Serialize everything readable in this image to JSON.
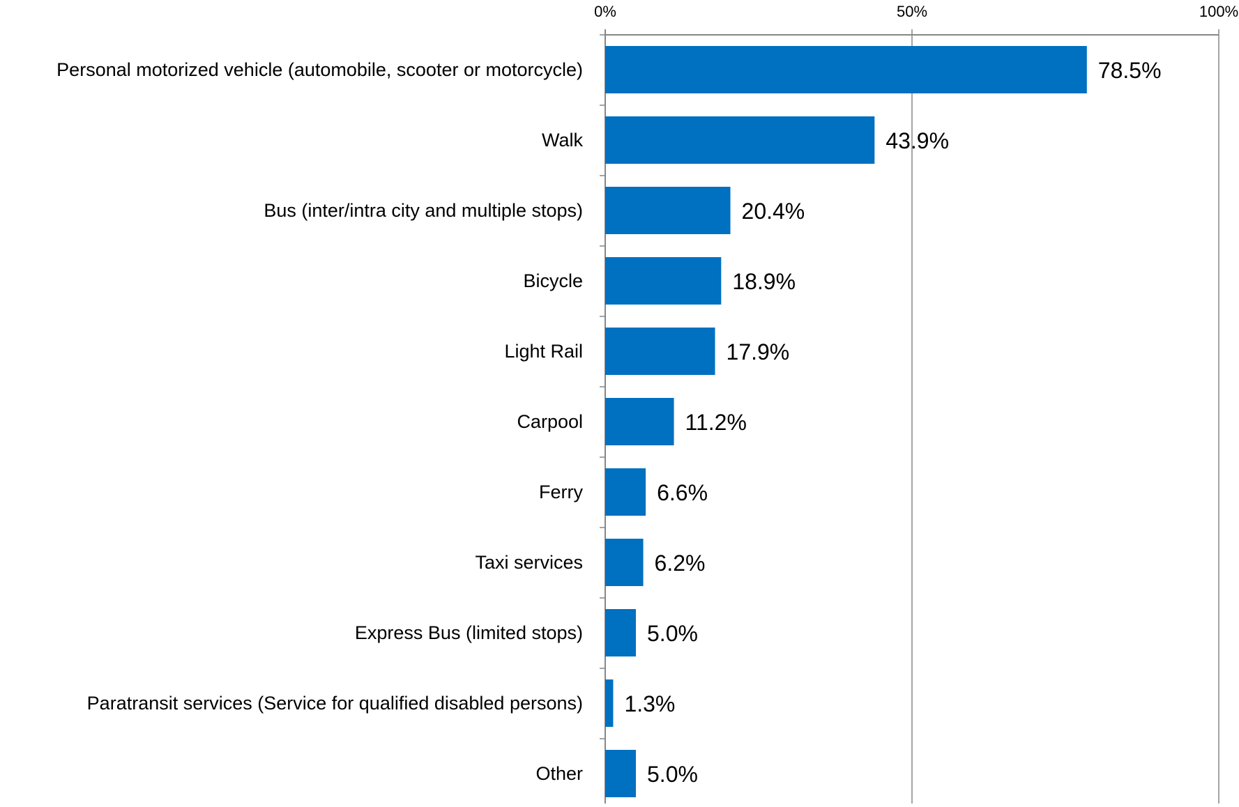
{
  "chart_data": {
    "type": "bar",
    "orientation": "horizontal",
    "title": "",
    "xlabel": "",
    "ylabel": "",
    "xlim": [
      0,
      100
    ],
    "grid": true,
    "legend": "none",
    "ticks": [
      {
        "value": 0,
        "label": "0%"
      },
      {
        "value": 50,
        "label": "50%"
      },
      {
        "value": 100,
        "label": "100%"
      }
    ],
    "categories": [
      "Personal motorized vehicle (automobile, scooter or motorcycle)",
      "Walk",
      "Bus (inter/intra city and multiple stops)",
      "Bicycle",
      "Light Rail",
      "Carpool",
      "Ferry",
      "Taxi services",
      "Express Bus (limited stops)",
      "Paratransit services (Service for qualified disabled persons)",
      "Other"
    ],
    "values": [
      78.5,
      43.9,
      20.4,
      18.9,
      17.9,
      11.2,
      6.6,
      6.2,
      5.0,
      1.3,
      5.0
    ],
    "data_labels": [
      "78.5%",
      "43.9%",
      "20.4%",
      "18.9%",
      "17.9%",
      "11.2%",
      "6.6%",
      "6.2%",
      "5.0%",
      "1.3%",
      "5.0%"
    ],
    "colors": {
      "bar": "#0070C0",
      "axis": "#868686",
      "grid": "#868686",
      "text": "#000000"
    }
  }
}
